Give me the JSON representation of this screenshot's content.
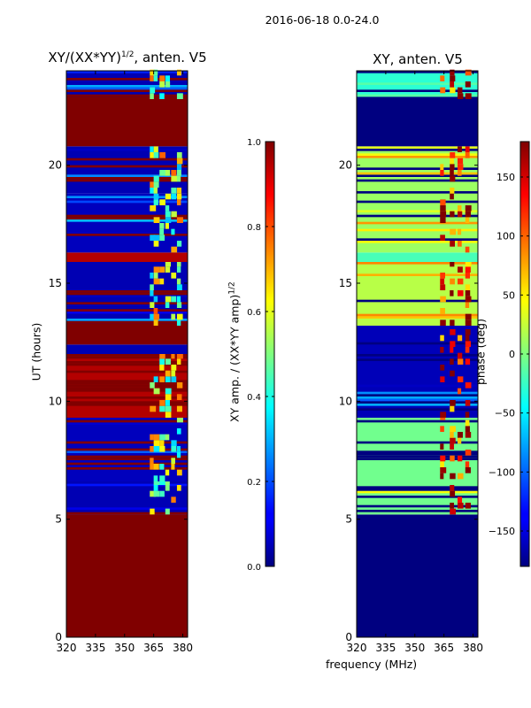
{
  "suptitle": "2016-06-18 0.0-24.0",
  "xlabel": "frequency (MHz)",
  "chart_data": [
    {
      "type": "heatmap",
      "title": "XY/(XX*YY)",
      "title_sup": "1/2",
      "title_suffix": ", anten. V5",
      "xlabel": "",
      "ylabel": "UT (hours)",
      "xlim": [
        320,
        382.5
      ],
      "ylim": [
        0,
        24
      ],
      "x_ticks": [
        320,
        335,
        350,
        365,
        380
      ],
      "y_ticks": [
        0,
        5,
        10,
        15,
        20
      ],
      "colormap": "jet",
      "colorbar": {
        "label": "XY amp. / (XX*YY amp)",
        "label_sup": "1/2",
        "range": [
          0.0,
          1.0
        ],
        "ticks": [
          "0.0",
          "0.2",
          "0.4",
          "0.6",
          "0.8",
          "1.0"
        ],
        "tick_values": [
          0.0,
          0.2,
          0.4,
          0.6,
          0.8,
          1.0
        ]
      },
      "time_bands": [
        {
          "from": 0.0,
          "to": 5.2,
          "value": 1.0
        },
        {
          "from": 5.2,
          "to": 6.6,
          "value": 0.05,
          "striped": true
        },
        {
          "from": 6.6,
          "to": 9.3,
          "value": 0.06,
          "striped": true
        },
        {
          "from": 9.3,
          "to": 12.0,
          "value": 0.95,
          "striped": true
        },
        {
          "from": 12.0,
          "to": 12.4,
          "value": 0.05
        },
        {
          "from": 12.4,
          "to": 13.2,
          "value": 1.0
        },
        {
          "from": 13.2,
          "to": 15.9,
          "value": 0.05,
          "striped": true
        },
        {
          "from": 15.9,
          "to": 16.3,
          "value": 0.95
        },
        {
          "from": 16.3,
          "to": 18.8,
          "value": 0.06,
          "striped": true
        },
        {
          "from": 18.8,
          "to": 20.8,
          "value": 0.05,
          "striped": true
        },
        {
          "from": 20.8,
          "to": 22.8,
          "value": 1.0
        },
        {
          "from": 22.8,
          "to": 24.0,
          "value": 0.05,
          "striped": true
        }
      ],
      "hot_columns": [
        363,
        365,
        368,
        371,
        374,
        377
      ],
      "hot_value": 0.55
    },
    {
      "type": "heatmap",
      "title": "XY, anten. V5",
      "xlabel": "",
      "ylabel": "",
      "xlim": [
        320,
        382.5
      ],
      "ylim": [
        0,
        24
      ],
      "x_ticks": [
        320,
        335,
        350,
        365,
        380
      ],
      "y_ticks": [
        0,
        5,
        10,
        15,
        20
      ],
      "colormap": "jet",
      "colorbar": {
        "label": "phase (deg)",
        "range": [
          -180,
          180
        ],
        "ticks": [
          "−150",
          "−100",
          "−50",
          "0",
          "50",
          "100",
          "150"
        ],
        "tick_values": [
          -150,
          -100,
          -50,
          0,
          50,
          100,
          150
        ]
      },
      "time_bands": [
        {
          "from": 0.0,
          "to": 5.2,
          "value": -180
        },
        {
          "from": 5.2,
          "to": 9.3,
          "value": -5,
          "striped": true
        },
        {
          "from": 9.3,
          "to": 13.2,
          "value": -160,
          "striped": true
        },
        {
          "from": 13.2,
          "to": 15.9,
          "value": 20,
          "striped": true
        },
        {
          "from": 15.9,
          "to": 16.3,
          "value": -20
        },
        {
          "from": 16.3,
          "to": 20.8,
          "value": 10,
          "striped": true
        },
        {
          "from": 20.8,
          "to": 22.8,
          "value": -180
        },
        {
          "from": 22.8,
          "to": 24.0,
          "value": -30,
          "striped": true
        }
      ],
      "hot_columns": [
        363,
        368,
        372,
        376
      ],
      "hot_value": 140
    }
  ]
}
